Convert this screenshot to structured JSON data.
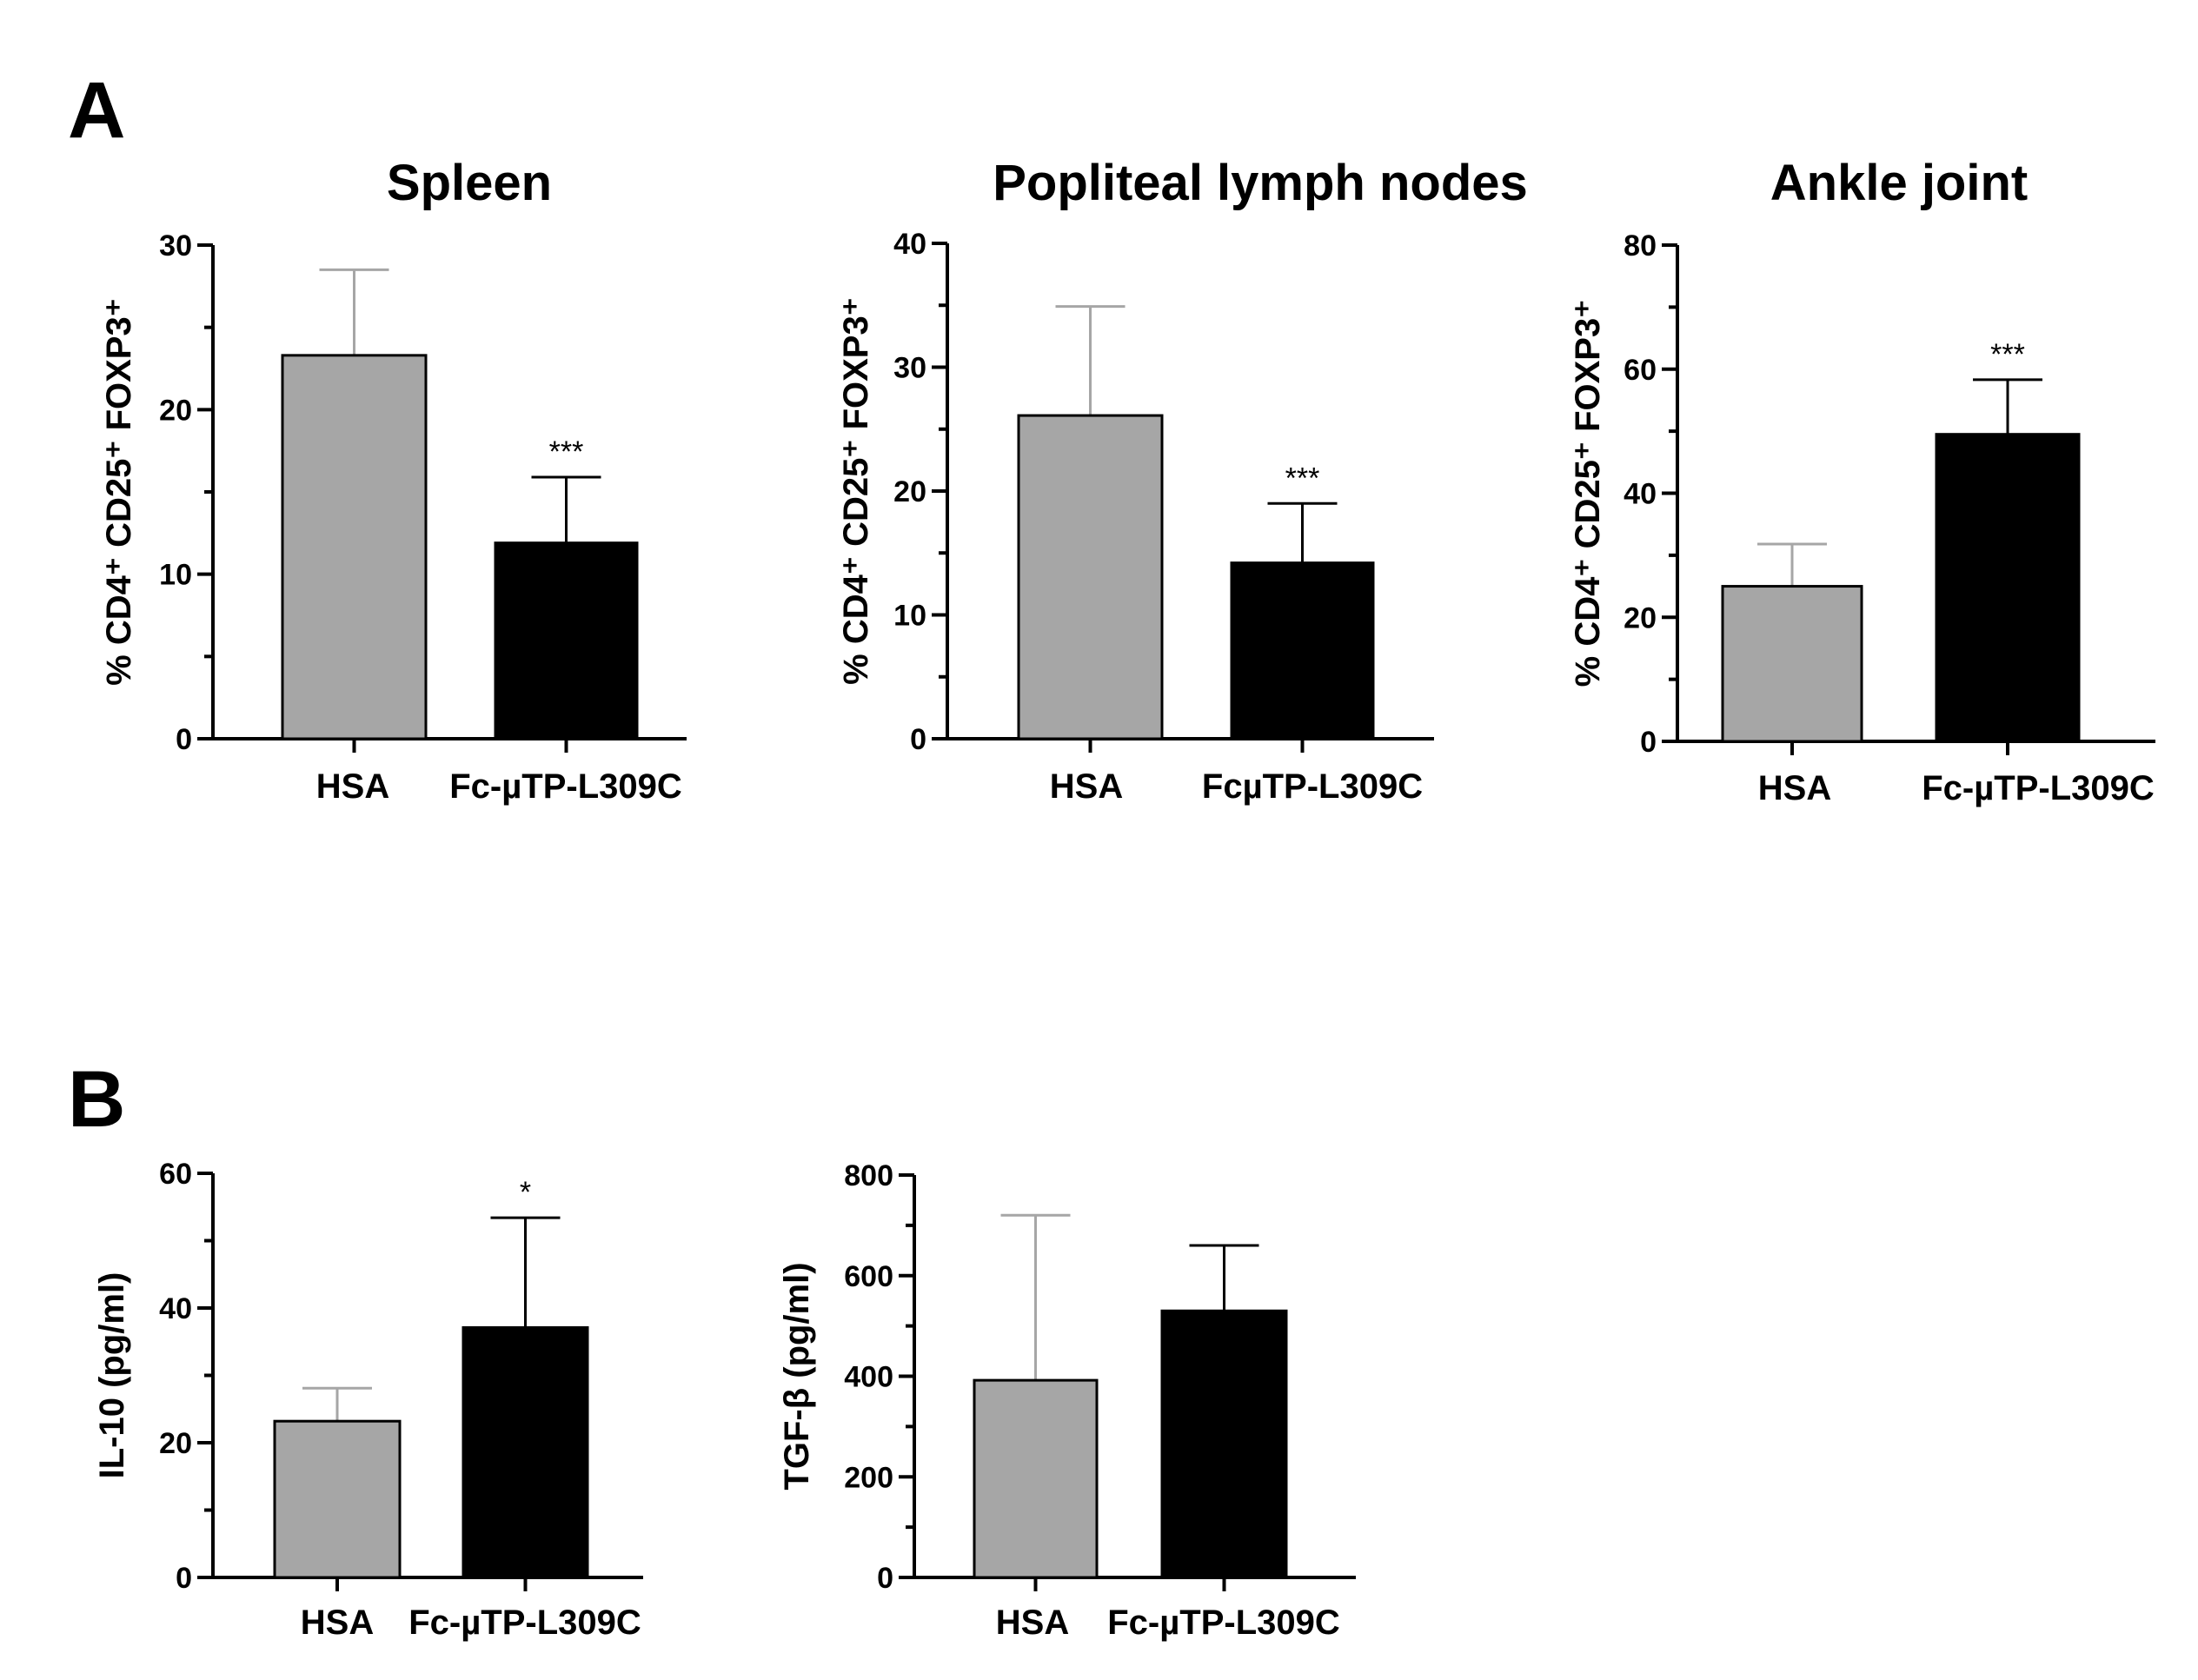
{
  "panels": [
    {
      "letter": "A"
    },
    {
      "letter": "B"
    }
  ],
  "colors": {
    "HSA": "#a6a6a6",
    "Fc-uTP-L309C": "#000000"
  },
  "chart_data": [
    {
      "type": "bar",
      "panel": "A",
      "title": "Spleen",
      "ylabel": "% CD4⁺ CD25⁺ FOXP3⁺",
      "categories": [
        "HSA",
        "Fc-µTP-L309C"
      ],
      "values": [
        23.3,
        11.9
      ],
      "errors": [
        5.2,
        4.0
      ],
      "annotations": [
        "",
        "***"
      ],
      "ylim": [
        0,
        30
      ],
      "yticks": [
        0,
        10,
        20,
        30
      ]
    },
    {
      "type": "bar",
      "panel": "A",
      "title": "Popliteal lymph nodes",
      "ylabel": "% CD4⁺ CD25⁺ FOXP3⁺",
      "categories": [
        "HSA",
        "FcµTP-L309C"
      ],
      "values": [
        26.1,
        14.2
      ],
      "errors": [
        8.8,
        4.8
      ],
      "annotations": [
        "",
        "***"
      ],
      "ylim": [
        0,
        40
      ],
      "yticks": [
        0,
        10,
        20,
        30,
        40
      ]
    },
    {
      "type": "bar",
      "panel": "A",
      "title": "Ankle joint",
      "ylabel": "% CD4⁺ CD25⁺ FOXP3⁺",
      "categories": [
        "HSA",
        "Fc-µTP-L309C"
      ],
      "values": [
        25.0,
        49.5
      ],
      "errors": [
        6.8,
        8.8
      ],
      "annotations": [
        "",
        "***"
      ],
      "ylim": [
        0,
        80
      ],
      "yticks": [
        0,
        20,
        40,
        60,
        80
      ]
    },
    {
      "type": "bar",
      "panel": "B",
      "title": "",
      "ylabel": "IL-10 (pg/ml)",
      "categories": [
        "HSA",
        "Fc-µTP-L309C"
      ],
      "values": [
        23.2,
        37.1
      ],
      "errors": [
        4.9,
        16.3
      ],
      "annotations": [
        "",
        "*"
      ],
      "ylim": [
        0,
        60
      ],
      "yticks": [
        0,
        20,
        40,
        60
      ]
    },
    {
      "type": "bar",
      "panel": "B",
      "title": "",
      "ylabel": "TGF-β (pg/ml)",
      "categories": [
        "HSA",
        "Fc-µTP-L309C"
      ],
      "values": [
        392,
        530
      ],
      "errors": [
        328,
        130
      ],
      "annotations": [
        "",
        ""
      ],
      "ylim": [
        0,
        800
      ],
      "yticks": [
        0,
        200,
        400,
        600,
        800
      ]
    }
  ]
}
